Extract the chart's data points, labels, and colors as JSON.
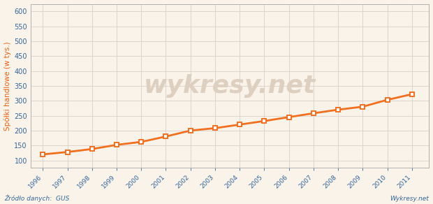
{
  "years": [
    1996,
    1997,
    1998,
    1999,
    2000,
    2001,
    2002,
    2003,
    2004,
    2005,
    2006,
    2007,
    2008,
    2009,
    2010,
    2011
  ],
  "values": [
    120,
    128,
    138,
    152,
    162,
    180,
    200,
    208,
    220,
    232,
    245,
    258,
    270,
    280,
    303,
    322
  ],
  "line_color": "#f07020",
  "marker_color": "#f07020",
  "marker_face": "#ffffff",
  "bg_color": "#faf3ea",
  "plot_bg": "#faf3ea",
  "border_color": "#b0b0b0",
  "grid_color": "#d8d0c8",
  "ylabel": "Spółki handlowe (w tys.)",
  "ylabel_color": "#e86010",
  "tick_color": "#336699",
  "ytick_start": 100,
  "ytick_end": 600,
  "ytick_step": 50,
  "ylim": [
    75,
    625
  ],
  "xlim_left": 1995.5,
  "xlim_right": 2011.7,
  "source_text": "Źródło danych:  GUS",
  "watermark_text": "wykresy.net",
  "credit_text": "Wykresy.net",
  "source_color": "#336699",
  "watermark_color": "#ddd0c0",
  "watermark_fontsize": 26,
  "line_width": 2.0,
  "marker_size": 5,
  "marker_edge_width": 1.4
}
